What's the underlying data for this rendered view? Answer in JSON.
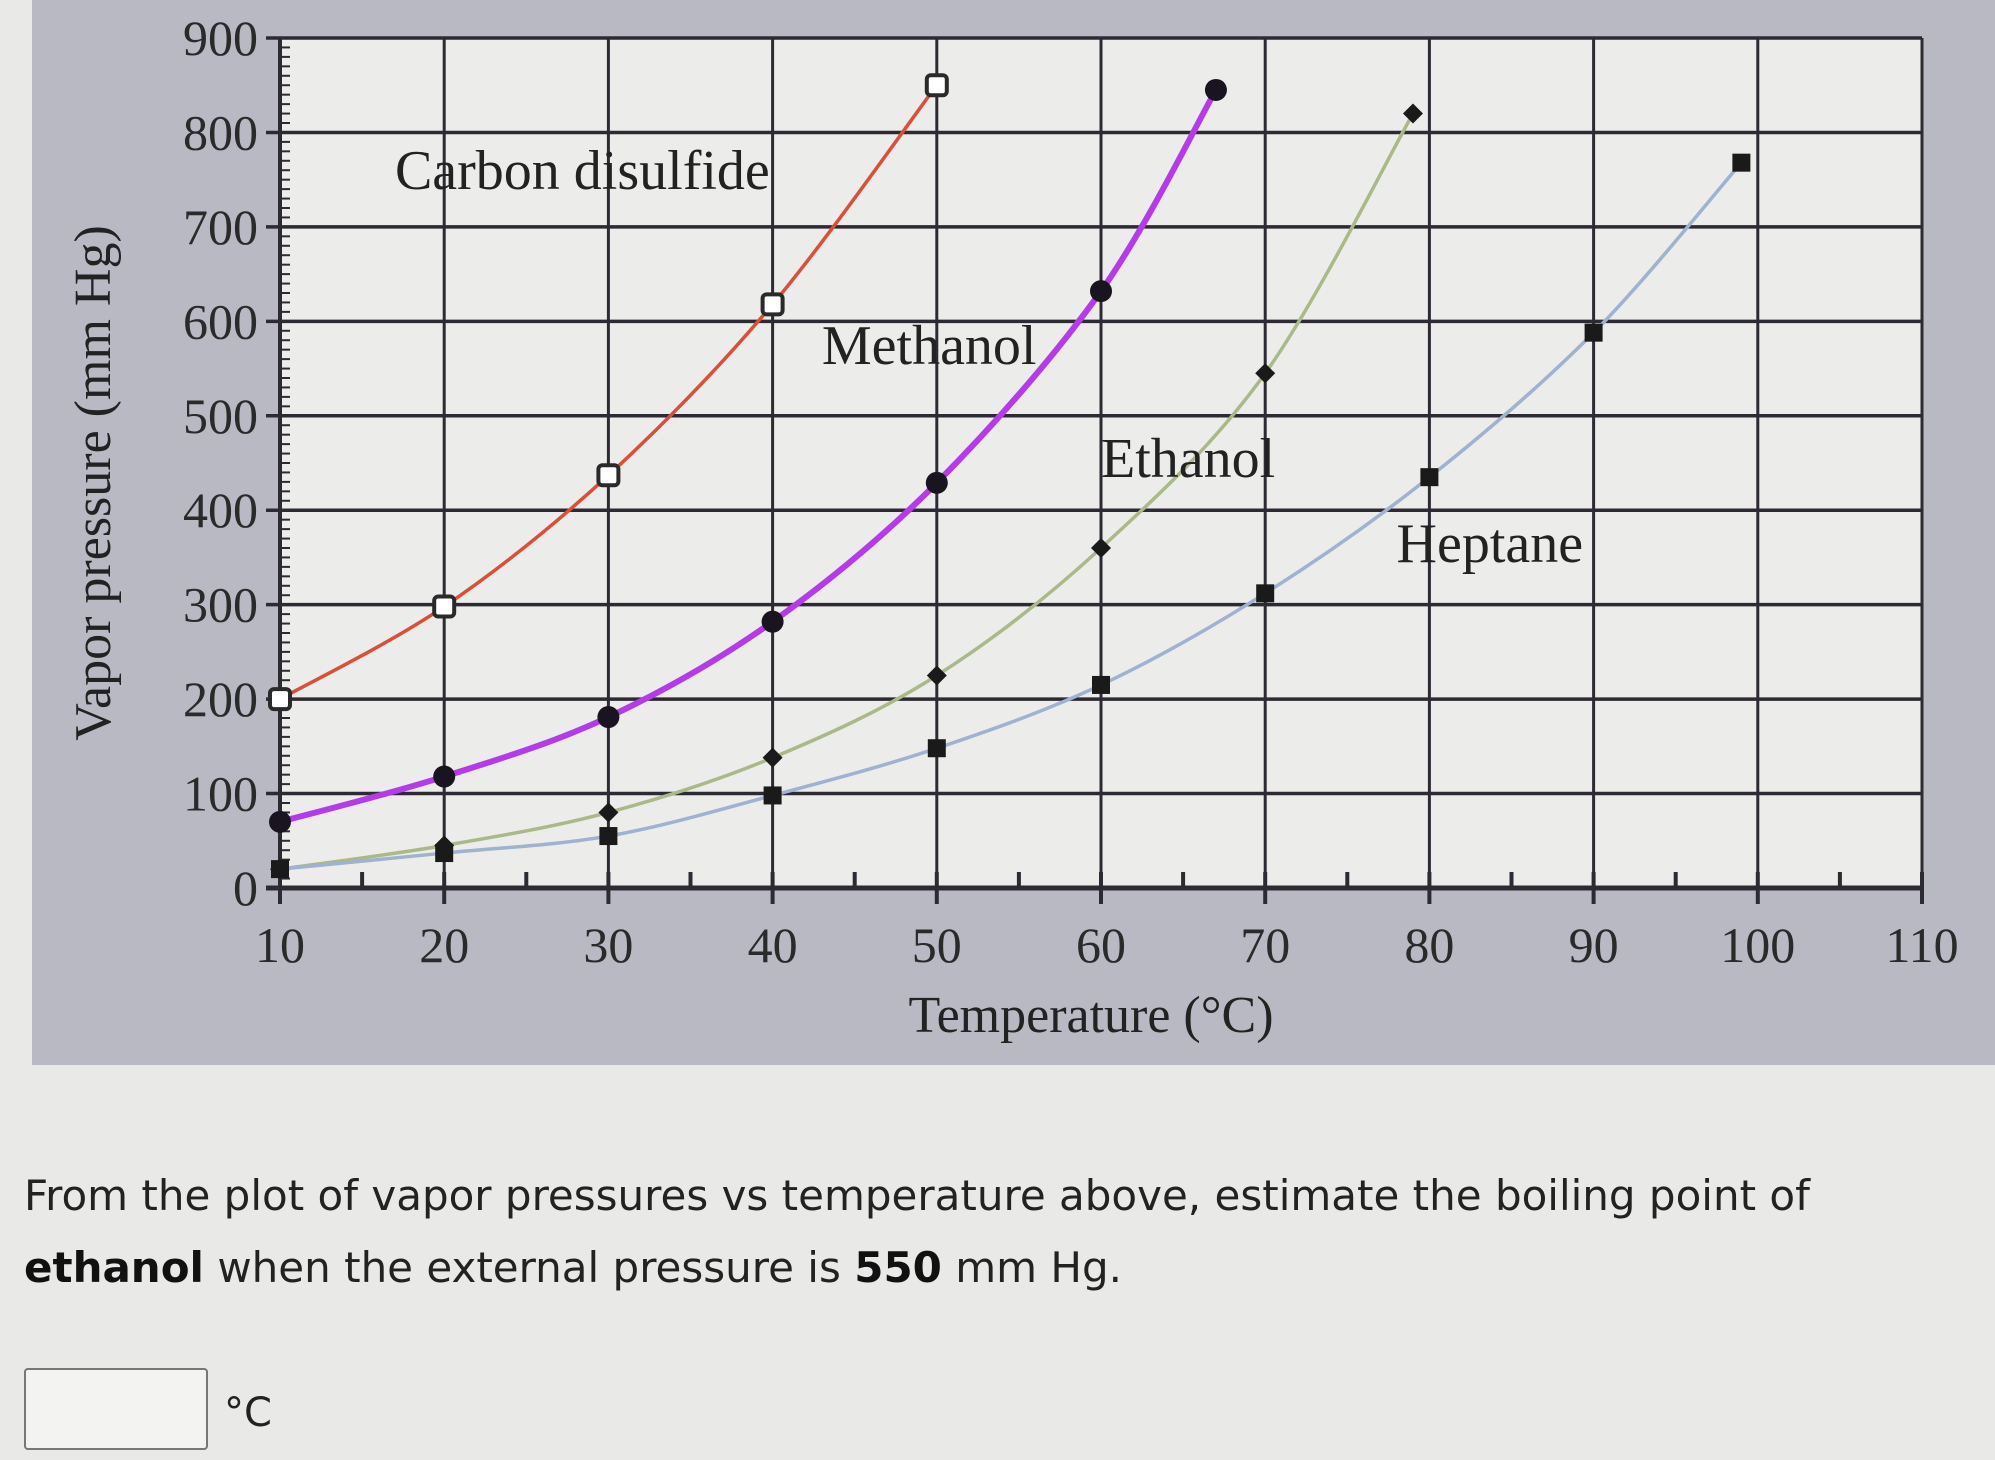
{
  "chart_data": {
    "type": "line",
    "title": "",
    "xlabel": "Temperature (°C)",
    "ylabel": "Vapor pressure (mm Hg)",
    "xlim": [
      10,
      110
    ],
    "ylim": [
      0,
      900
    ],
    "x_ticks": [
      10,
      20,
      30,
      40,
      50,
      60,
      70,
      80,
      90,
      100,
      110
    ],
    "y_ticks": [
      0,
      100,
      200,
      300,
      400,
      500,
      600,
      700,
      800,
      900
    ],
    "grid": true,
    "legend": "inline labels",
    "series": [
      {
        "name": "Carbon disulfide",
        "color": "#d9503a",
        "marker": "open-square",
        "x": [
          10,
          20,
          30,
          40,
          50
        ],
        "y": [
          200,
          298,
          437,
          618,
          850
        ]
      },
      {
        "name": "Methanol",
        "color": "#b43ce8",
        "marker": "filled-circle",
        "x": [
          10,
          20,
          30,
          40,
          50,
          60,
          67
        ],
        "y": [
          70,
          118,
          181,
          282,
          429,
          632,
          845
        ]
      },
      {
        "name": "Ethanol",
        "color": "#aab98a",
        "marker": "filled-diamond",
        "x": [
          10,
          20,
          30,
          40,
          50,
          60,
          70,
          79
        ],
        "y": [
          20,
          45,
          80,
          138,
          225,
          360,
          545,
          820
        ]
      },
      {
        "name": "Heptane",
        "color": "#9fb2cf",
        "marker": "filled-square",
        "x": [
          10,
          20,
          30,
          40,
          50,
          60,
          70,
          80,
          90,
          99
        ],
        "y": [
          20,
          37,
          55,
          98,
          148,
          215,
          312,
          435,
          588,
          768
        ]
      }
    ],
    "annotations": [
      {
        "text": "Carbon disulfide",
        "x": 17,
        "y": 740
      },
      {
        "text": "Methanol",
        "x": 43,
        "y": 555
      },
      {
        "text": "Ethanol",
        "x": 60,
        "y": 435
      },
      {
        "text": "Heptane",
        "x": 78,
        "y": 345
      }
    ]
  },
  "question": {
    "part1": "From the plot of vapor pressures vs temperature above, estimate the boiling point of",
    "bold1": "ethanol",
    "part2": " when the external pressure is ",
    "bold2": "550",
    "part3": " mm Hg."
  },
  "answer": {
    "value": "",
    "unit": "°C"
  }
}
